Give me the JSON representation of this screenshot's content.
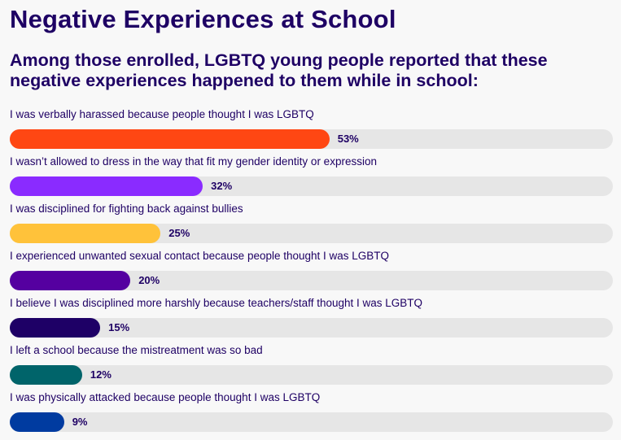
{
  "header": {
    "title": "Negative Experiences at School",
    "subtitle": "Among those enrolled, LGBTQ young people reported that these negative experiences happened to them while in school:"
  },
  "chart_data": {
    "type": "bar",
    "orientation": "horizontal",
    "title": "Negative Experiences at School",
    "xlim": [
      0,
      100
    ],
    "unit": "%",
    "categories": [
      "I was verbally harassed because people thought I was LGBTQ",
      "I wasn’t allowed to dress in the way that fit my gender identity or expression",
      "I was disciplined for fighting back against bullies",
      "I experienced unwanted sexual contact because people thought I was LGBTQ",
      "I believe I was disciplined more harshly because teachers/staff thought I was LGBTQ",
      "I left a school because the mistreatment was so bad",
      "I was physically attacked because people thought I was LGBTQ"
    ],
    "values": [
      53,
      32,
      25,
      20,
      15,
      12,
      9
    ],
    "labels": [
      "53%",
      "32%",
      "25%",
      "20%",
      "15%",
      "12%",
      "9%"
    ],
    "colors": [
      "#ff4713",
      "#8a2bff",
      "#ffc23a",
      "#5500a0",
      "#1e0066",
      "#00646a",
      "#003ba0"
    ]
  }
}
